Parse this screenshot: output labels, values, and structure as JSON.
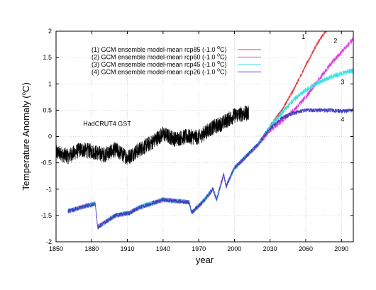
{
  "chart_data": {
    "type": "line",
    "xlabel": "year",
    "ylabel_main": "Temperature Anomaly (",
    "ylabel_sup": "o",
    "ylabel_end": "C)",
    "xlim": [
      1850,
      2100
    ],
    "ylim": [
      -2,
      2
    ],
    "xticks": [
      1850,
      1880,
      1910,
      1940,
      1970,
      2000,
      2030,
      2060,
      2090
    ],
    "yticks": [
      -2,
      -1.5,
      -1,
      -0.5,
      0,
      0.5,
      1,
      1.5,
      2
    ],
    "grid": true,
    "legend_position": "top-right",
    "legend": [
      {
        "label": "(1) GCM ensemble model-mean rcp85 (-1.0 ",
        "sup": "o",
        "end": "C)",
        "color": "#e04040"
      },
      {
        "label": "(2) GCM ensemble model-mean rcp60 (-1.0 ",
        "sup": "o",
        "end": "C)",
        "color": "#e040e0"
      },
      {
        "label": "(3) GCM ensemble model-mean rcp45 (-1.0 ",
        "sup": "o",
        "end": "C)",
        "color": "#40e0e0"
      },
      {
        "label": "(4) GCM ensemble model-mean rcp26 (-1.0 ",
        "sup": "o",
        "end": "C)",
        "color": "#4040c0"
      }
    ],
    "annotations": [
      {
        "text": "HadCRUT4 GST",
        "x": 1893,
        "y": 0.2
      },
      {
        "text": "1",
        "x": 2058,
        "y": 1.85
      },
      {
        "text": "2",
        "x": 2085,
        "y": 1.78
      },
      {
        "text": "3",
        "x": 2091,
        "y": 1.0
      },
      {
        "text": "4",
        "x": 2091,
        "y": 0.28
      }
    ],
    "series": [
      {
        "name": "HadCRUT4 GST",
        "color": "#000000",
        "noise": 0.15,
        "x": [
          1850,
          1860,
          1870,
          1880,
          1890,
          1900,
          1910,
          1920,
          1930,
          1940,
          1950,
          1960,
          1970,
          1980,
          1990,
          2000,
          2012
        ],
        "y": [
          -0.3,
          -0.38,
          -0.25,
          -0.28,
          -0.35,
          -0.25,
          -0.4,
          -0.25,
          -0.12,
          0.05,
          -0.05,
          0.0,
          -0.02,
          0.15,
          0.25,
          0.4,
          0.45
        ]
      },
      {
        "name": "(1) rcp85",
        "color": "#e04040",
        "noise": 0.04,
        "x": [
          1860,
          1875,
          1883,
          1885,
          1900,
          1912,
          1920,
          1940,
          1962,
          1964,
          1975,
          1982,
          1985,
          1991,
          1993,
          2000,
          2020,
          2030,
          2040,
          2050,
          2060,
          2070,
          2080
        ],
        "y": [
          -1.42,
          -1.32,
          -1.28,
          -1.72,
          -1.5,
          -1.45,
          -1.35,
          -1.2,
          -1.25,
          -1.45,
          -1.2,
          -1.0,
          -1.2,
          -0.72,
          -0.95,
          -0.6,
          -0.15,
          0.2,
          0.5,
          0.9,
          1.35,
          1.78,
          2.1
        ]
      },
      {
        "name": "(2) rcp60",
        "color": "#e040e0",
        "noise": 0.05,
        "x": [
          1860,
          1875,
          1883,
          1885,
          1900,
          1912,
          1920,
          1940,
          1962,
          1964,
          1975,
          1982,
          1985,
          1991,
          1993,
          2000,
          2020,
          2030,
          2040,
          2050,
          2060,
          2070,
          2080,
          2090,
          2100
        ],
        "y": [
          -1.42,
          -1.32,
          -1.28,
          -1.72,
          -1.5,
          -1.45,
          -1.35,
          -1.2,
          -1.25,
          -1.45,
          -1.2,
          -1.0,
          -1.2,
          -0.72,
          -0.95,
          -0.6,
          -0.15,
          0.12,
          0.3,
          0.5,
          0.75,
          1.05,
          1.35,
          1.6,
          1.85
        ]
      },
      {
        "name": "(3) rcp45",
        "color": "#40e0e0",
        "noise": 0.05,
        "x": [
          1860,
          1875,
          1883,
          1885,
          1900,
          1912,
          1920,
          1940,
          1962,
          1964,
          1975,
          1982,
          1985,
          1991,
          1993,
          2000,
          2020,
          2030,
          2040,
          2050,
          2060,
          2070,
          2080,
          2090,
          2100
        ],
        "y": [
          -1.42,
          -1.32,
          -1.28,
          -1.72,
          -1.5,
          -1.45,
          -1.35,
          -1.2,
          -1.25,
          -1.45,
          -1.2,
          -1.0,
          -1.2,
          -0.72,
          -0.95,
          -0.6,
          -0.15,
          0.18,
          0.45,
          0.7,
          0.88,
          1.02,
          1.12,
          1.2,
          1.25
        ]
      },
      {
        "name": "(4) rcp26",
        "color": "#4040c0",
        "noise": 0.04,
        "x": [
          1860,
          1875,
          1883,
          1885,
          1900,
          1912,
          1920,
          1940,
          1962,
          1964,
          1975,
          1982,
          1985,
          1991,
          1993,
          2000,
          2020,
          2030,
          2040,
          2050,
          2060,
          2070,
          2080,
          2090,
          2100
        ],
        "y": [
          -1.42,
          -1.32,
          -1.28,
          -1.72,
          -1.5,
          -1.45,
          -1.35,
          -1.2,
          -1.25,
          -1.45,
          -1.2,
          -1.0,
          -1.2,
          -0.72,
          -0.95,
          -0.6,
          -0.15,
          0.15,
          0.35,
          0.45,
          0.5,
          0.5,
          0.5,
          0.48,
          0.5
        ]
      }
    ]
  }
}
